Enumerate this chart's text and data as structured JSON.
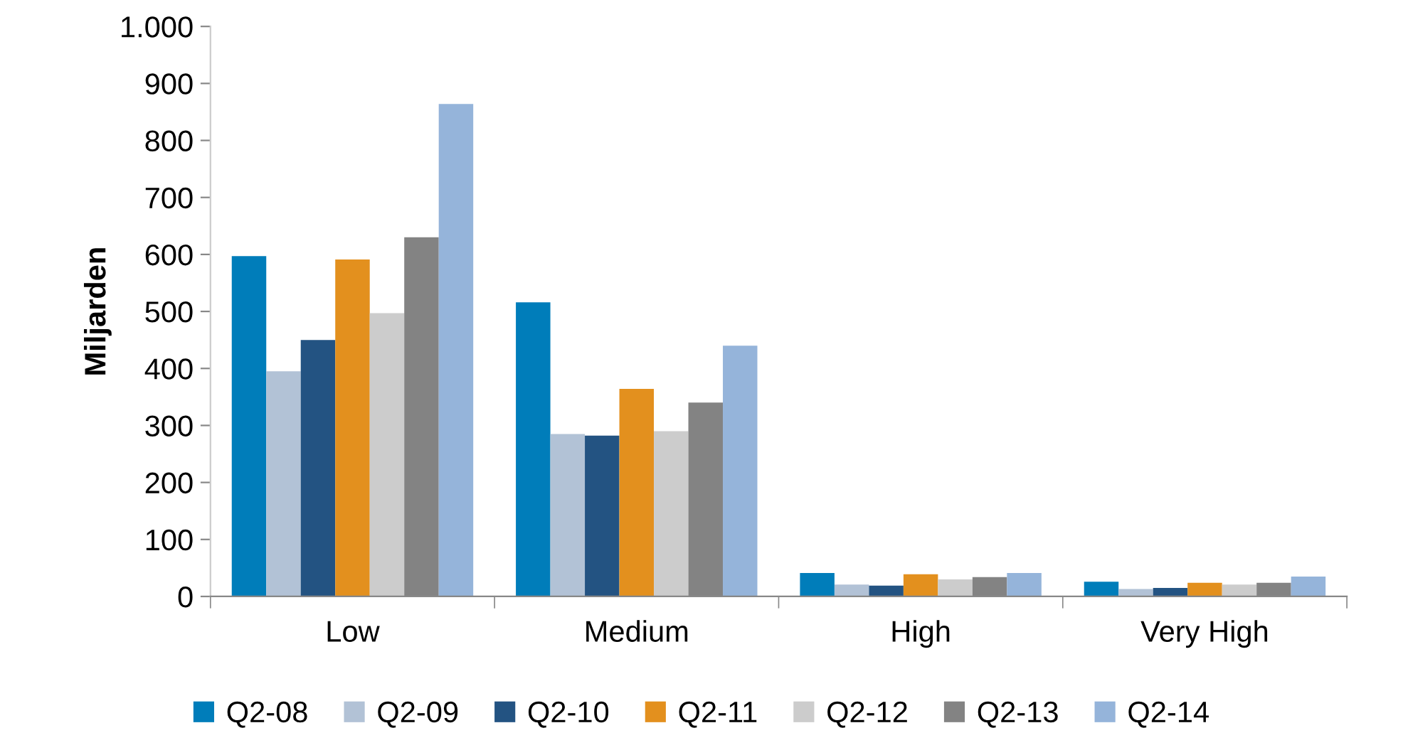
{
  "chart_data": {
    "type": "bar",
    "ylabel": "Miljarden",
    "categories": [
      "Low",
      "Medium",
      "High",
      "Very High"
    ],
    "series": [
      {
        "name": "Q2-08",
        "color": "#007dba",
        "values": [
          597,
          516,
          41,
          26
        ]
      },
      {
        "name": "Q2-09",
        "color": "#b2c2d6",
        "values": [
          395,
          285,
          21,
          13
        ]
      },
      {
        "name": "Q2-10",
        "color": "#235382",
        "values": [
          450,
          282,
          19,
          15
        ]
      },
      {
        "name": "Q2-11",
        "color": "#e3901e",
        "values": [
          591,
          364,
          39,
          24
        ]
      },
      {
        "name": "Q2-12",
        "color": "#cccccc",
        "values": [
          497,
          290,
          30,
          21
        ]
      },
      {
        "name": "Q2-13",
        "color": "#838383",
        "values": [
          630,
          340,
          34,
          24
        ]
      },
      {
        "name": "Q2-14",
        "color": "#95b4da",
        "values": [
          864,
          440,
          41,
          35
        ]
      }
    ],
    "ylim": [
      0,
      1000
    ],
    "yticks": [
      {
        "value": 0,
        "label": "0"
      },
      {
        "value": 100,
        "label": "100"
      },
      {
        "value": 200,
        "label": "200"
      },
      {
        "value": 300,
        "label": "300"
      },
      {
        "value": 400,
        "label": "400"
      },
      {
        "value": 500,
        "label": "500"
      },
      {
        "value": 600,
        "label": "600"
      },
      {
        "value": 700,
        "label": "700"
      },
      {
        "value": 800,
        "label": "800"
      },
      {
        "value": 900,
        "label": "900"
      },
      {
        "value": 1000,
        "label": "1.000"
      }
    ],
    "grid": false,
    "legend": "bottom"
  }
}
